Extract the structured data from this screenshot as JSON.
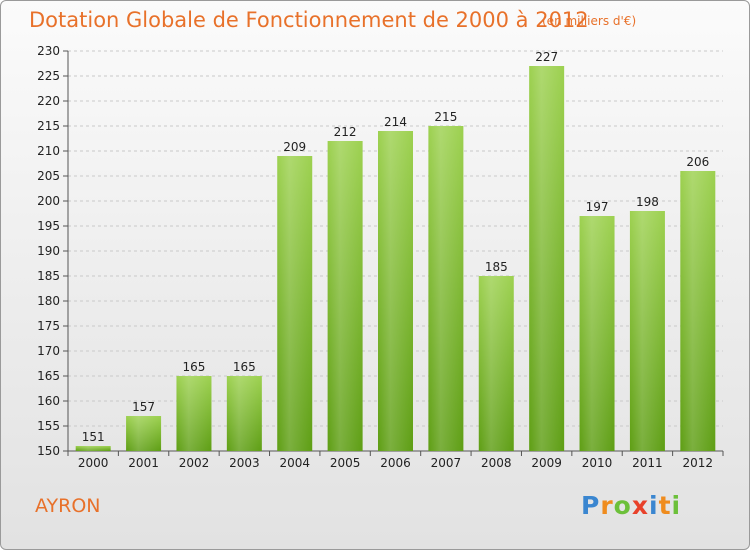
{
  "header": {
    "title": "Dotation Globale de Fonctionnement de 2000 à 2012",
    "unit": "(en milliers d'€)"
  },
  "footer": {
    "city": "AYRON",
    "logo": "Proxiti"
  },
  "colors": {
    "accent": "#e8712a",
    "bar_top": "#9dd150",
    "bar_bottom": "#5e9e14"
  },
  "chart_data": {
    "type": "bar",
    "title": "Dotation Globale de Fonctionnement de 2000 à 2012",
    "xlabel": "",
    "ylabel": "",
    "categories": [
      "2000",
      "2001",
      "2002",
      "2003",
      "2004",
      "2005",
      "2006",
      "2007",
      "2008",
      "2009",
      "2010",
      "2011",
      "2012"
    ],
    "values": [
      151,
      157,
      165,
      165,
      209,
      212,
      214,
      215,
      185,
      227,
      197,
      198,
      206
    ],
    "ylim": [
      150,
      230
    ],
    "yticks": [
      150,
      155,
      160,
      165,
      170,
      175,
      180,
      185,
      190,
      195,
      200,
      205,
      210,
      215,
      220,
      225,
      230
    ],
    "grid": true,
    "legend": "none"
  }
}
